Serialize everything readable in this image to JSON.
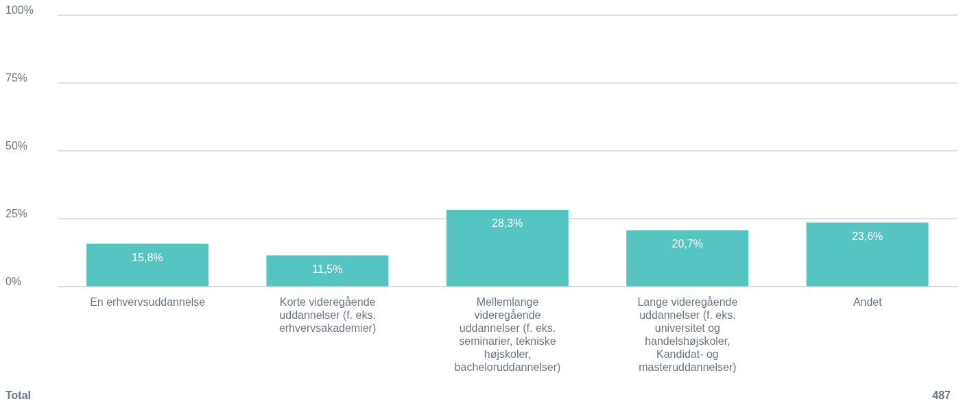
{
  "chart_data": {
    "type": "bar",
    "categories": [
      "En erhvervsuddannelse",
      "Korte videregående uddannelser (f. eks. erhvervsakademier)",
      "Mellemlange videregående uddannelser (f. eks. seminarier, tekniske højskoler, bacheloruddannelser)",
      "Lange videregående uddannelser (f. eks. universitet og handelshøjskoler, Kandidat- og masteruddannelser)",
      "Andet"
    ],
    "values": [
      15.8,
      11.5,
      28.3,
      20.7,
      23.6
    ],
    "value_labels": [
      "15,8%",
      "11,5%",
      "28,3%",
      "20,7%",
      "23,6%"
    ],
    "color": "#56c4c0",
    "ylim": [
      0,
      100
    ],
    "yticks": [
      {
        "value": 0,
        "label": "0%"
      },
      {
        "value": 25,
        "label": "25%"
      },
      {
        "value": 50,
        "label": "50%"
      },
      {
        "value": 75,
        "label": "75%"
      },
      {
        "value": 100,
        "label": "100%"
      }
    ],
    "grid": "y",
    "annotations": [
      "Total",
      "487"
    ]
  }
}
